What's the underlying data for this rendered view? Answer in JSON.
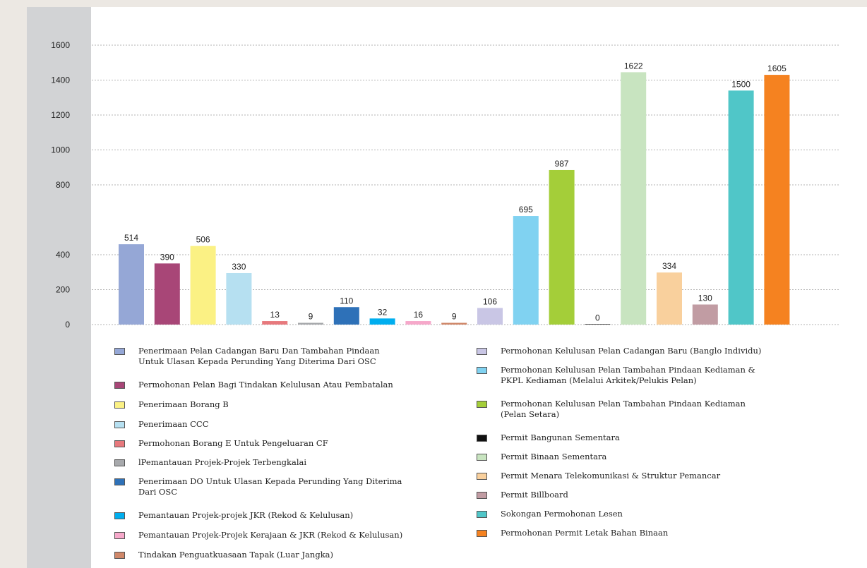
{
  "chart_data": {
    "type": "bar",
    "ylim": [
      0,
      1700
    ],
    "yticks": [
      0,
      200,
      400,
      800,
      1000,
      1200,
      1400,
      1600
    ],
    "grid": true,
    "legend_position": "bottom",
    "bars": [
      {
        "name": "Penerimaan Pelan Cadangan Baru Dan Tambahan Pindaan Untuk Ulasan Kepada Perunding Yang Diterima Dari OSC",
        "label": "514",
        "height": 460,
        "color": "#95a7d6"
      },
      {
        "name": "Permohonan Pelan Bagi Tindakan Kelulusan Atau Pembatalan",
        "label": "390",
        "height": 350,
        "color": "#a84677"
      },
      {
        "name": "Penerimaan Borang B",
        "label": "506",
        "height": 450,
        "color": "#fbf184"
      },
      {
        "name": "Penerimaan CCC",
        "label": "330",
        "height": 295,
        "color": "#b6e0f1"
      },
      {
        "name": "Permohonan Borang E Untuk Pengeluaran CF",
        "label": "13",
        "height": 20,
        "color": "#e7797d"
      },
      {
        "name": "lPemantauan Projek-Projek Terbengkalai",
        "label": "9",
        "height": 10,
        "color": "#a7a9ac"
      },
      {
        "name": "Penerimaan DO Untuk Ulasan Kepada Perunding Yang Diterima Dari OSC",
        "label": "110",
        "height": 100,
        "color": "#2e71b8"
      },
      {
        "name": "Pemantauan Projek-projek JKR (Rekod & Kelulusan)",
        "label": "32",
        "height": 35,
        "color": "#00aeef"
      },
      {
        "name": "Pemantauan Projek-Projek Kerajaan & JKR (Rekod & Kelulusan)",
        "label": "16",
        "height": 20,
        "color": "#f6a8ca"
      },
      {
        "name": "Tindakan Penguatkuasaan Tapak (Luar Jangka)",
        "label": "9",
        "height": 10,
        "color": "#d0886a"
      },
      {
        "name": "Permohonan Kelulusan Pelan Cadangan Baru (Banglo Individu)",
        "label": "106",
        "height": 95,
        "color": "#c9c6e5"
      },
      {
        "name": "Permohonan Kelulusan Pelan Tambahan Pindaan Kediaman & PKPL Kediaman (Melalui Arkitek/Pelukis Pelan)",
        "label": "695",
        "height": 622,
        "color": "#80d2f1"
      },
      {
        "name": "Permohonan Kelulusan Pelan Tambahan Pindaan Kediaman (Pelan Setara)",
        "label": "987",
        "height": 885,
        "color": "#a4ce39"
      },
      {
        "name": "Permit Bangunan Sementara",
        "label": "0",
        "height": 3,
        "color": "#111111"
      },
      {
        "name": "Permit Binaan Sementara",
        "label": "1622",
        "height": 1445,
        "color": "#c8e4c0"
      },
      {
        "name": "Permit Menara Telekomunikasi & Struktur Pemancar",
        "label": "334",
        "height": 298,
        "color": "#f9d09d"
      },
      {
        "name": "Permit Billboard",
        "label": "130",
        "height": 115,
        "color": "#c19ca3"
      },
      {
        "name": "Sokongan Permohonan Lesen",
        "label": "1500",
        "height": 1340,
        "color": "#50c6c8"
      },
      {
        "name": "Permohonan Permit Letak Bahan Binaan",
        "label": "1605",
        "height": 1430,
        "color": "#f58220"
      }
    ]
  },
  "legend": {
    "left": [
      {
        "text": "Penerimaan Pelan Cadangan Baru Dan Tambahan Pindaan Untuk Ulasan Kepada Perunding Yang Diterima Dari OSC",
        "color": "#95a7d6"
      },
      {
        "text": "Permohonan Pelan Bagi Tindakan Kelulusan Atau Pembatalan",
        "color": "#a84677"
      },
      {
        "text": "Penerimaan Borang B",
        "color": "#fbf184"
      },
      {
        "text": "Penerimaan CCC",
        "color": "#b6e0f1"
      },
      {
        "text": "Permohonan Borang E Untuk Pengeluaran CF",
        "color": "#e7797d"
      },
      {
        "text": "lPemantauan Projek-Projek Terbengkalai",
        "color": "#a7a9ac"
      },
      {
        "text": "Penerimaan DO Untuk Ulasan Kepada Perunding Yang Diterima Dari OSC",
        "color": "#2e71b8"
      },
      {
        "text": "Pemantauan Projek-projek JKR (Rekod & Kelulusan)",
        "color": "#00aeef"
      },
      {
        "text": "Pemantauan Projek-Projek Kerajaan & JKR (Rekod & Kelulusan)",
        "color": "#f6a8ca"
      },
      {
        "text": "Tindakan Penguatkuasaan Tapak (Luar Jangka)",
        "color": "#d0886a"
      }
    ],
    "right": [
      {
        "text": "Permohonan Kelulusan Pelan Cadangan Baru (Banglo Individu)",
        "color": "#c9c6e5"
      },
      {
        "text": "Permohonan Kelulusan Pelan Tambahan Pindaan Kediaman & PKPL Kediaman (Melalui Arkitek/Pelukis Pelan)",
        "color": "#80d2f1"
      },
      {
        "text": "Permohonan Kelulusan Pelan Tambahan Pindaan Kediaman (Pelan Setara)",
        "color": "#a4ce39"
      },
      {
        "text": "Permit Bangunan Sementara",
        "color": "#111111"
      },
      {
        "text": "Permit Binaan Sementara",
        "color": "#c8e4c0"
      },
      {
        "text": "Permit Menara Telekomunikasi & Struktur Pemancar",
        "color": "#f9d09d"
      },
      {
        "text": "Permit Billboard",
        "color": "#c19ca3"
      },
      {
        "text": "Sokongan Permohonan Lesen",
        "color": "#50c6c8"
      },
      {
        "text": "Permohonan Permit Letak Bahan Binaan",
        "color": "#f58220"
      }
    ]
  }
}
